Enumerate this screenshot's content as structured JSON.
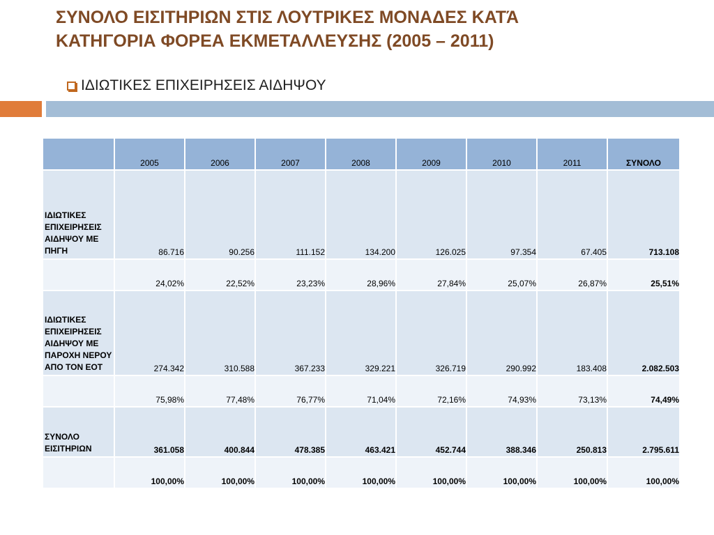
{
  "slide": {
    "title_line1": "ΣΥΝΟΛΟ ΕΙΣΙΤΗΡΙΩΝ ΣΤΙΣ ΛΟΥΤΡΙΚΕΣ ΜΟΝΑΔΕΣ ΚΑΤΆ",
    "title_line2": "ΚΑΤΗΓΟΡΙΑ ΦΟΡΕΑ ΕΚΜΕΤΑΛΛΕΥΣΗΣ (2005 – 2011)",
    "bullet": "ΙΔΙΩΤΙΚΕΣ ΕΠΙΧΕΙΡΗΣΕΙΣ ΑΙΔΗΨΟΥ",
    "bullet_icon": "checkbox-bullet-icon",
    "colors": {
      "title": "#7f4a25",
      "accent_orange": "#e07c3a",
      "accent_blue": "#a3bdd6",
      "header_fill": "#95b3d7"
    }
  },
  "table": {
    "headers": [
      "",
      "2005",
      "2006",
      "2007",
      "2008",
      "2009",
      "2010",
      "2011",
      "ΣΥΝΟΛΟ"
    ],
    "rows": [
      {
        "label": "ΙΔΙΩΤΙΚΕΣ ΕΠΙΧΕΙΡΗΣΕΙΣ ΑΙΔΗΨΟΥ ΜΕ ΠΗΓΗ",
        "cells": [
          "86.716",
          "90.256",
          "111.152",
          "134.200",
          "126.025",
          "97.354",
          "67.405",
          "713.108"
        ]
      },
      {
        "label": "",
        "cells": [
          "24,02%",
          "22,52%",
          "23,23%",
          "28,96%",
          "27,84%",
          "25,07%",
          "26,87%",
          "25,51%"
        ]
      },
      {
        "label": "ΙΔΙΩΤΙΚΕΣ ΕΠΙΧΕΙΡΗΣΕΙΣ ΑΙΔΗΨΟΥ ΜΕ ΠΑΡΟΧΗ ΝΕΡΟΥ ΑΠΟ ΤΟΝ ΕΟΤ",
        "cells": [
          "274.342",
          "310.588",
          "367.233",
          "329.221",
          "326.719",
          "290.992",
          "183.408",
          "2.082.503"
        ]
      },
      {
        "label": "",
        "cells": [
          "75,98%",
          "77,48%",
          "76,77%",
          "71,04%",
          "72,16%",
          "74,93%",
          "73,13%",
          "74,49%"
        ]
      },
      {
        "label": "ΣΥΝΟΛΟ ΕΙΣΙΤΗΡΙΩΝ",
        "cells": [
          "361.058",
          "400.844",
          "478.385",
          "463.421",
          "452.744",
          "388.346",
          "250.813",
          "2.795.611"
        ]
      },
      {
        "label": "",
        "cells": [
          "100,00%",
          "100,00%",
          "100,00%",
          "100,00%",
          "100,00%",
          "100,00%",
          "100,00%",
          "100,00%"
        ]
      }
    ]
  }
}
